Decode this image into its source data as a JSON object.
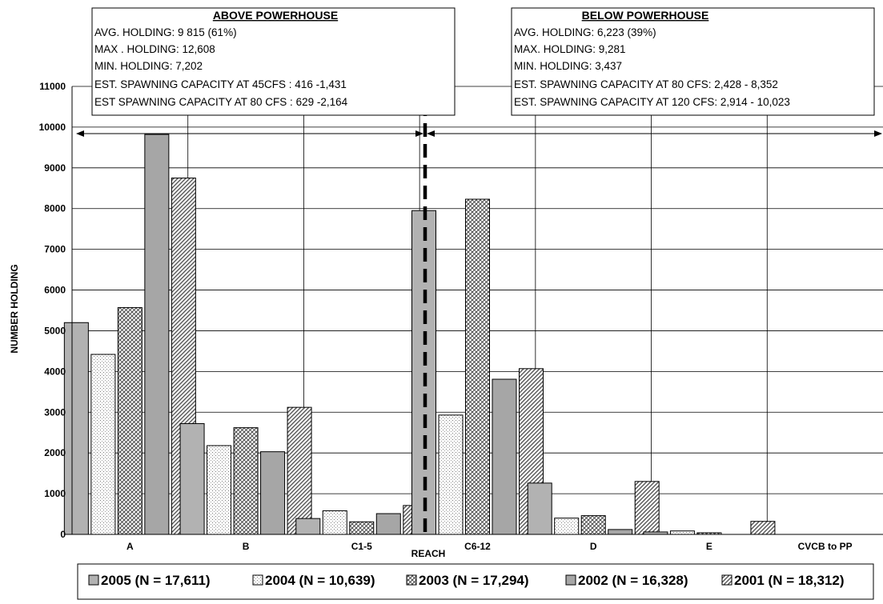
{
  "chart_data": {
    "type": "bar",
    "xlabel": "REACH",
    "ylabel": "NUMBER HOLDING",
    "ylim": [
      0,
      11000
    ],
    "yticks": [
      "0",
      "1000",
      "2000",
      "3000",
      "4000",
      "5000",
      "6000",
      "7000",
      "8000",
      "9000",
      "10000",
      "11000"
    ],
    "categories": [
      "A",
      "B",
      "C1-5",
      "C6-12",
      "D",
      "E",
      "CVCB to PP"
    ],
    "grid": true,
    "legend_position": "bottom",
    "series": [
      {
        "name": "2005 (N = 17,611)",
        "pattern": "solid-gray",
        "values": [
          5200,
          2720,
          390,
          7950,
          1260,
          60,
          0
        ]
      },
      {
        "name": "2004 (N = 10,639)",
        "pattern": "dotted-white",
        "values": [
          4420,
          2180,
          580,
          2930,
          400,
          85,
          0
        ]
      },
      {
        "name": "2003 (N = 17,294)",
        "pattern": "crosshatch",
        "values": [
          5570,
          2620,
          310,
          8230,
          460,
          40,
          0
        ]
      },
      {
        "name": "2002 (N = 16,328)",
        "pattern": "solid-gray",
        "values": [
          9820,
          2030,
          510,
          3810,
          120,
          0,
          0
        ]
      },
      {
        "name": "2001 (N = 18,312)",
        "pattern": "diagonal",
        "values": [
          8750,
          3120,
          710,
          4070,
          1300,
          320,
          0
        ]
      }
    ],
    "annotations": {
      "above": {
        "title": "ABOVE  POWERHOUSE",
        "lines": [
          "AVG.  HOLDING:  9 815 (61%)",
          "MAX . HOLDING: 12,608",
          "MIN.  HOLDING: 7,202",
          "EST. SPAWNING CAPACITY  AT 45CFS : 416 -1,431",
          "EST SPAWNING CAPACITY  AT 80 CFS : 629 -2,164"
        ]
      },
      "below": {
        "title": "BELOW POWERHOUSE",
        "lines": [
          "AVG.  HOLDING:   6,223 (39%)",
          "MAX. HOLDING: 9,281",
          "MIN. HOLDING: 3,437",
          "EST. SPAWNING CAPACITY AT 80 CFS:  2,428 - 8,352",
          "EST. SPAWNING CAPACITY AT 120 CFS: 2,914 - 10,023"
        ]
      }
    },
    "colors": {
      "bar_gray": "#b2b2b2",
      "bar_dark_gray": "#a6a6a6",
      "hatch": "#555555",
      "grid": "#000000"
    }
  }
}
